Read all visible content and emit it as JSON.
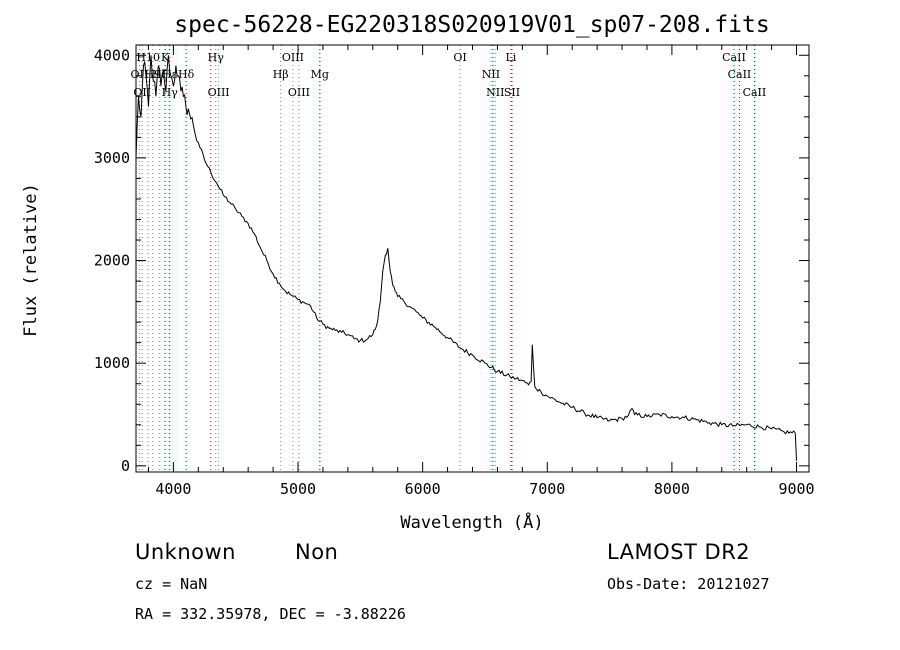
{
  "chart_data": {
    "type": "line",
    "title": "spec-56228-EG220318S020919V01_sp07-208.fits",
    "xlabel": "Wavelength (Å)",
    "ylabel": "Flux (relative)",
    "xlim": [
      3700,
      9100
    ],
    "ylim": [
      -60,
      4100
    ],
    "xticks": [
      4000,
      5000,
      6000,
      7000,
      8000,
      9000
    ],
    "yticks": [
      0,
      1000,
      2000,
      3000,
      4000
    ],
    "grid": false,
    "series": [
      {
        "x": [
          3700,
          3720,
          3740,
          3760,
          3780,
          3800,
          3820,
          3840,
          3860,
          3880,
          3900,
          3920,
          3940,
          3960,
          3980,
          4000,
          4020,
          4040,
          4060,
          4080,
          4100,
          4120,
          4140,
          4160,
          4200,
          4250,
          4300,
          4350,
          4400,
          4450,
          4500,
          4550,
          4600,
          4650,
          4700,
          4750,
          4800,
          4850,
          4900,
          4950,
          5000,
          5050,
          5100,
          5150,
          5200,
          5250,
          5300,
          5350,
          5400,
          5450,
          5500,
          5550,
          5600,
          5620,
          5640,
          5660,
          5680,
          5700,
          5720,
          5740,
          5760,
          5780,
          5800,
          5850,
          5900,
          5950,
          6000,
          6100,
          6200,
          6300,
          6400,
          6500,
          6600,
          6700,
          6750,
          6800,
          6850,
          6870,
          6880,
          6890,
          6900,
          6950,
          7000,
          7100,
          7200,
          7300,
          7400,
          7500,
          7600,
          7650,
          7680,
          7700,
          7800,
          7900,
          8000,
          8100,
          8200,
          8300,
          8400,
          8500,
          8600,
          8700,
          8800,
          8900,
          8990,
          9000
        ],
        "values": [
          3000,
          3600,
          3400,
          3900,
          3800,
          3500,
          4000,
          3750,
          3600,
          3900,
          3700,
          3850,
          3650,
          4000,
          3800,
          3700,
          3900,
          3800,
          3650,
          3600,
          3500,
          3480,
          3380,
          3320,
          3150,
          2980,
          2860,
          2750,
          2640,
          2570,
          2500,
          2430,
          2360,
          2260,
          2120,
          2000,
          1870,
          1780,
          1700,
          1660,
          1620,
          1590,
          1560,
          1440,
          1380,
          1340,
          1320,
          1300,
          1280,
          1240,
          1220,
          1230,
          1280,
          1330,
          1420,
          1600,
          1900,
          2050,
          2120,
          1900,
          1760,
          1700,
          1650,
          1600,
          1550,
          1500,
          1440,
          1350,
          1250,
          1150,
          1080,
          1000,
          920,
          870,
          850,
          830,
          790,
          820,
          1180,
          950,
          770,
          720,
          680,
          620,
          570,
          510,
          470,
          440,
          460,
          490,
          560,
          500,
          480,
          500,
          480,
          470,
          450,
          420,
          400,
          390,
          400,
          380,
          360,
          330,
          320,
          50
        ]
      }
    ],
    "line_groups": [
      {
        "color": "#808080",
        "lines": [
          {
            "x": 3727,
            "label": "OII",
            "row": 1
          },
          {
            "x": 3750,
            "label": "OII",
            "row": 2
          },
          {
            "x": 3798,
            "label": "H10",
            "row": 0
          },
          {
            "x": 3835,
            "label": "H9",
            "row": 1
          },
          {
            "x": 3889,
            "label": "Hζ",
            "row": 1
          },
          {
            "x": 3934,
            "label": "K",
            "row": 0
          },
          {
            "x": 3970,
            "label": "Hε",
            "row": 1
          },
          {
            "x": 3970,
            "label": "Hγ",
            "row": 2
          },
          {
            "x": 4102,
            "label": "Hδ",
            "row": 1
          },
          {
            "x": 4340,
            "label": "Hγ",
            "row": 0
          },
          {
            "x": 4363,
            "label": "OIII",
            "row": 2
          },
          {
            "x": 4861,
            "label": "Hβ",
            "row": 1
          },
          {
            "x": 4959,
            "label": "OIII",
            "row": 0
          },
          {
            "x": 5007,
            "label": "OIII",
            "row": 2
          },
          {
            "x": 5175,
            "label": "Mg",
            "row": 1
          },
          {
            "x": 6300,
            "label": "OI",
            "row": 0
          },
          {
            "x": 6548,
            "label": "NII",
            "row": 1
          },
          {
            "x": 6583,
            "label": "NII",
            "row": 2
          },
          {
            "x": 8498,
            "label": "CaII",
            "row": 0
          },
          {
            "x": 8542,
            "label": "CaII",
            "row": 1
          },
          {
            "x": 8662,
            "label": "CaII",
            "row": 2
          }
        ]
      },
      {
        "color": "#cc0000",
        "lines": [
          {
            "x": 3933,
            "label": "",
            "row": 0
          },
          {
            "x": 3968,
            "label": "",
            "row": 0
          },
          {
            "x": 4102,
            "label": "",
            "row": 0
          },
          {
            "x": 4300,
            "label": "",
            "row": 0
          },
          {
            "x": 5175,
            "label": "",
            "row": 0
          },
          {
            "x": 6563,
            "label": "",
            "row": 0
          },
          {
            "x": 6708,
            "label": "Li",
            "row": 0
          },
          {
            "x": 6717,
            "label": "SII",
            "row": 2
          },
          {
            "x": 8498,
            "label": "",
            "row": 0
          },
          {
            "x": 8542,
            "label": "",
            "row": 0
          },
          {
            "x": 8662,
            "label": "",
            "row": 0
          }
        ]
      }
    ]
  },
  "info": {
    "class": "Unknown",
    "subclass": "Non",
    "survey": "LAMOST DR2",
    "cz": "cz = NaN",
    "obs_date": "Obs-Date: 20121027",
    "coords": "RA = 332.35978, DEC =  -3.88226"
  }
}
